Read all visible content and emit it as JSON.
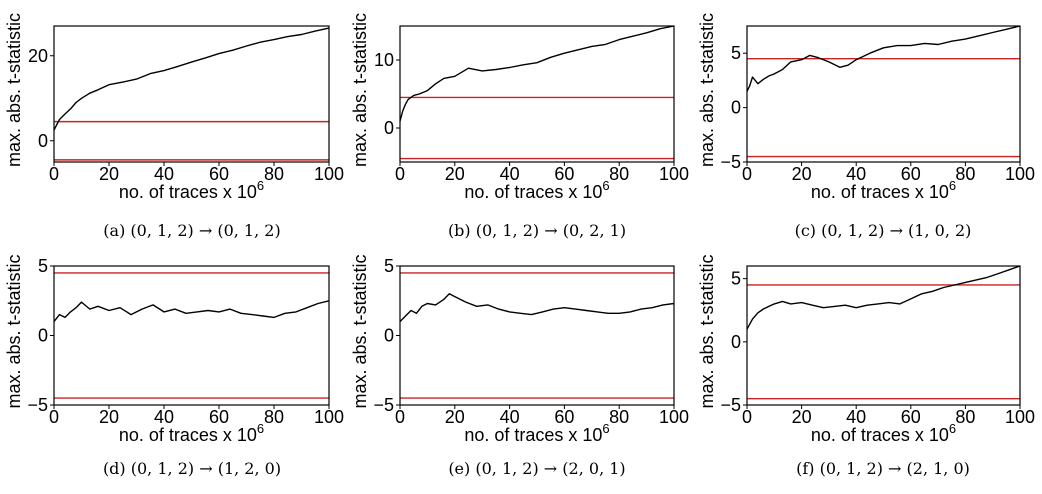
{
  "chart_data": [
    {
      "type": "line",
      "caption": "(a) (0, 1, 2) → (0, 1, 2)",
      "xlabel": "no. of traces x 10",
      "xlabel_exp": "6",
      "ylabel": "max. abs. t-statistic",
      "xlim": [
        0,
        100
      ],
      "ylim": [
        -5,
        27
      ],
      "xticks": [
        0,
        20,
        40,
        60,
        80,
        100
      ],
      "yticks": [
        0,
        20
      ],
      "thresholds": [
        4.5,
        -4.5
      ],
      "series": [
        {
          "x": [
            0,
            1,
            2,
            4,
            6,
            8,
            10,
            13,
            16,
            20,
            25,
            30,
            35,
            40,
            45,
            50,
            55,
            60,
            65,
            70,
            75,
            80,
            85,
            90,
            95,
            100
          ],
          "values": [
            2.5,
            3.8,
            5.0,
            6.3,
            7.5,
            9.0,
            10.0,
            11.2,
            12.0,
            13.2,
            13.8,
            14.5,
            15.8,
            16.5,
            17.5,
            18.5,
            19.5,
            20.5,
            21.3,
            22.3,
            23.2,
            23.8,
            24.5,
            25.0,
            25.8,
            26.5
          ]
        }
      ]
    },
    {
      "type": "line",
      "caption": "(b) (0, 1, 2) → (0, 2, 1)",
      "xlabel": "no. of traces x 10",
      "xlabel_exp": "6",
      "ylabel": "max. abs. t-statistic",
      "xlim": [
        0,
        100
      ],
      "ylim": [
        -5,
        15
      ],
      "xticks": [
        0,
        20,
        40,
        60,
        80,
        100
      ],
      "yticks": [
        0,
        10
      ],
      "thresholds": [
        4.5,
        -4.5
      ],
      "series": [
        {
          "x": [
            0,
            1,
            2,
            3,
            4,
            5,
            7,
            10,
            13,
            16,
            20,
            25,
            30,
            35,
            40,
            45,
            50,
            55,
            60,
            65,
            70,
            75,
            80,
            85,
            90,
            95,
            100
          ],
          "values": [
            1.0,
            2.5,
            3.5,
            4.2,
            4.5,
            4.8,
            5.0,
            5.5,
            6.5,
            7.3,
            7.6,
            8.8,
            8.4,
            8.6,
            8.9,
            9.3,
            9.6,
            10.4,
            11.0,
            11.5,
            12.0,
            12.3,
            13.0,
            13.5,
            14.0,
            14.6,
            15.0
          ]
        }
      ]
    },
    {
      "type": "line",
      "caption": "(c) (0, 1, 2) → (1, 0, 2)",
      "xlabel": "no. of traces x 10",
      "xlabel_exp": "6",
      "ylabel": "max. abs. t-statistic",
      "xlim": [
        0,
        100
      ],
      "ylim": [
        -5,
        7.5
      ],
      "xticks": [
        0,
        20,
        40,
        60,
        80,
        100
      ],
      "yticks": [
        -5,
        0,
        5
      ],
      "thresholds": [
        4.5,
        -4.5
      ],
      "series": [
        {
          "x": [
            0,
            1,
            2,
            4,
            6,
            8,
            10,
            13,
            16,
            20,
            23,
            26,
            30,
            34,
            37,
            40,
            45,
            50,
            55,
            60,
            65,
            70,
            75,
            80,
            85,
            90,
            95,
            100
          ],
          "values": [
            1.5,
            2.0,
            2.8,
            2.2,
            2.6,
            2.9,
            3.1,
            3.5,
            4.2,
            4.4,
            4.8,
            4.6,
            4.2,
            3.7,
            3.9,
            4.4,
            5.0,
            5.5,
            5.7,
            5.7,
            5.9,
            5.8,
            6.1,
            6.3,
            6.6,
            6.9,
            7.2,
            7.5
          ]
        }
      ]
    },
    {
      "type": "line",
      "caption": "(d) (0, 1, 2) → (1, 2, 0)",
      "xlabel": "no. of traces x 10",
      "xlabel_exp": "6",
      "ylabel": "max. abs. t-statistic",
      "xlim": [
        0,
        100
      ],
      "ylim": [
        -5,
        5
      ],
      "xticks": [
        0,
        20,
        40,
        60,
        80,
        100
      ],
      "yticks": [
        -5,
        0,
        5
      ],
      "thresholds": [
        4.5,
        -4.5
      ],
      "series": [
        {
          "x": [
            0,
            2,
            4,
            6,
            8,
            10,
            13,
            16,
            20,
            24,
            28,
            32,
            36,
            40,
            44,
            48,
            52,
            56,
            60,
            64,
            68,
            72,
            76,
            80,
            84,
            88,
            92,
            96,
            100
          ],
          "values": [
            1.0,
            1.5,
            1.3,
            1.7,
            2.0,
            2.4,
            1.9,
            2.1,
            1.8,
            2.0,
            1.5,
            1.9,
            2.2,
            1.7,
            1.9,
            1.6,
            1.7,
            1.8,
            1.7,
            1.9,
            1.6,
            1.5,
            1.4,
            1.3,
            1.6,
            1.7,
            2.0,
            2.3,
            2.5
          ]
        }
      ]
    },
    {
      "type": "line",
      "caption": "(e) (0, 1, 2) → (2, 0, 1)",
      "xlabel": "no. of traces x 10",
      "xlabel_exp": "6",
      "ylabel": "max. abs. t-statistic",
      "xlim": [
        0,
        100
      ],
      "ylim": [
        -5,
        5
      ],
      "xticks": [
        0,
        20,
        40,
        60,
        80,
        100
      ],
      "yticks": [
        -5,
        0,
        5
      ],
      "thresholds": [
        4.5,
        -4.5
      ],
      "series": [
        {
          "x": [
            0,
            2,
            4,
            6,
            8,
            10,
            13,
            16,
            18,
            20,
            24,
            28,
            32,
            36,
            40,
            44,
            48,
            52,
            56,
            60,
            64,
            68,
            72,
            76,
            80,
            84,
            88,
            92,
            96,
            100
          ],
          "values": [
            1.0,
            1.4,
            1.8,
            1.6,
            2.1,
            2.3,
            2.2,
            2.6,
            3.0,
            2.8,
            2.4,
            2.1,
            2.2,
            1.9,
            1.7,
            1.6,
            1.5,
            1.7,
            1.9,
            2.0,
            1.9,
            1.8,
            1.7,
            1.6,
            1.6,
            1.7,
            1.9,
            2.0,
            2.2,
            2.3
          ]
        }
      ]
    },
    {
      "type": "line",
      "caption": "(f) (0, 1, 2) → (2, 1, 0)",
      "xlabel": "no. of traces x 10",
      "xlabel_exp": "6",
      "ylabel": "max. abs. t-statistic",
      "xlim": [
        0,
        100
      ],
      "ylim": [
        -5,
        6
      ],
      "xticks": [
        0,
        20,
        40,
        60,
        80,
        100
      ],
      "yticks": [
        -5,
        0,
        5
      ],
      "thresholds": [
        4.5,
        -4.5
      ],
      "series": [
        {
          "x": [
            0,
            2,
            4,
            6,
            8,
            10,
            13,
            16,
            20,
            24,
            28,
            32,
            36,
            40,
            44,
            48,
            52,
            56,
            60,
            64,
            68,
            72,
            76,
            80,
            84,
            88,
            92,
            96,
            100
          ],
          "values": [
            1.0,
            1.8,
            2.3,
            2.6,
            2.8,
            3.0,
            3.2,
            3.0,
            3.1,
            2.9,
            2.7,
            2.8,
            2.9,
            2.7,
            2.9,
            3.0,
            3.1,
            3.0,
            3.4,
            3.8,
            4.0,
            4.3,
            4.5,
            4.7,
            4.9,
            5.1,
            5.4,
            5.7,
            6.0
          ]
        }
      ]
    }
  ]
}
